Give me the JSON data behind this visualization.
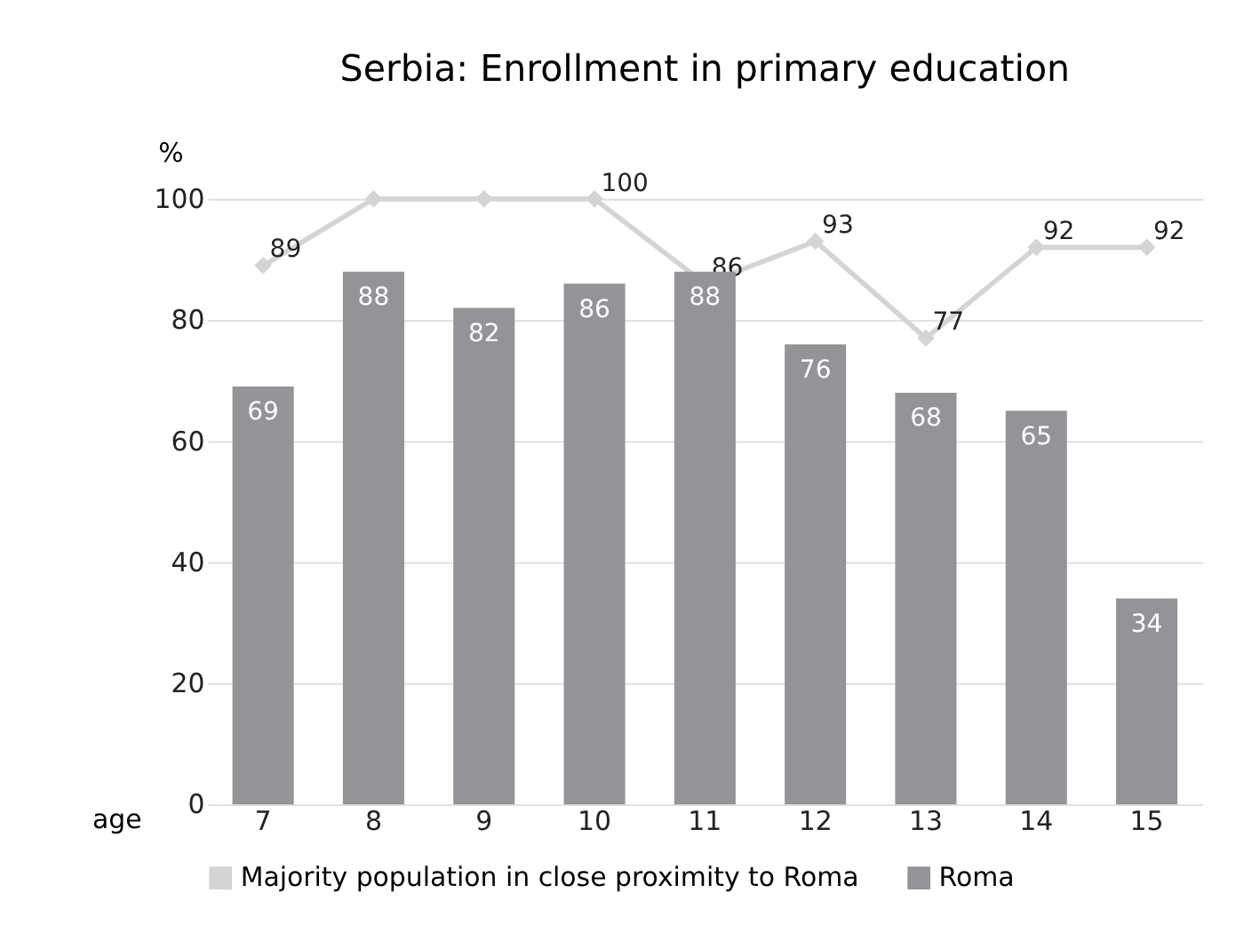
{
  "chart_data": {
    "type": "bar",
    "title": "Serbia: Enrollment in primary education",
    "xlabel": "age",
    "ylabel": "%",
    "categories": [
      "7",
      "8",
      "9",
      "10",
      "11",
      "12",
      "13",
      "14",
      "15"
    ],
    "series": [
      {
        "name": "Majority population in close proximity to Roma",
        "type": "line",
        "color": "#d4d4d4",
        "marker": "diamond",
        "values": [
          89,
          100,
          100,
          100,
          86,
          93,
          77,
          92,
          92
        ],
        "value_labels": [
          "89",
          null,
          null,
          "100",
          "86",
          "93",
          "77",
          "92",
          "92"
        ]
      },
      {
        "name": "Roma",
        "color": "#939497",
        "values": [
          69,
          88,
          82,
          86,
          88,
          76,
          68,
          65,
          34
        ],
        "data_labels": true
      }
    ],
    "ylim": [
      0,
      100
    ],
    "yticks": [
      0,
      20,
      40,
      60,
      80,
      100
    ],
    "grid": "y",
    "legend": "bottom"
  }
}
